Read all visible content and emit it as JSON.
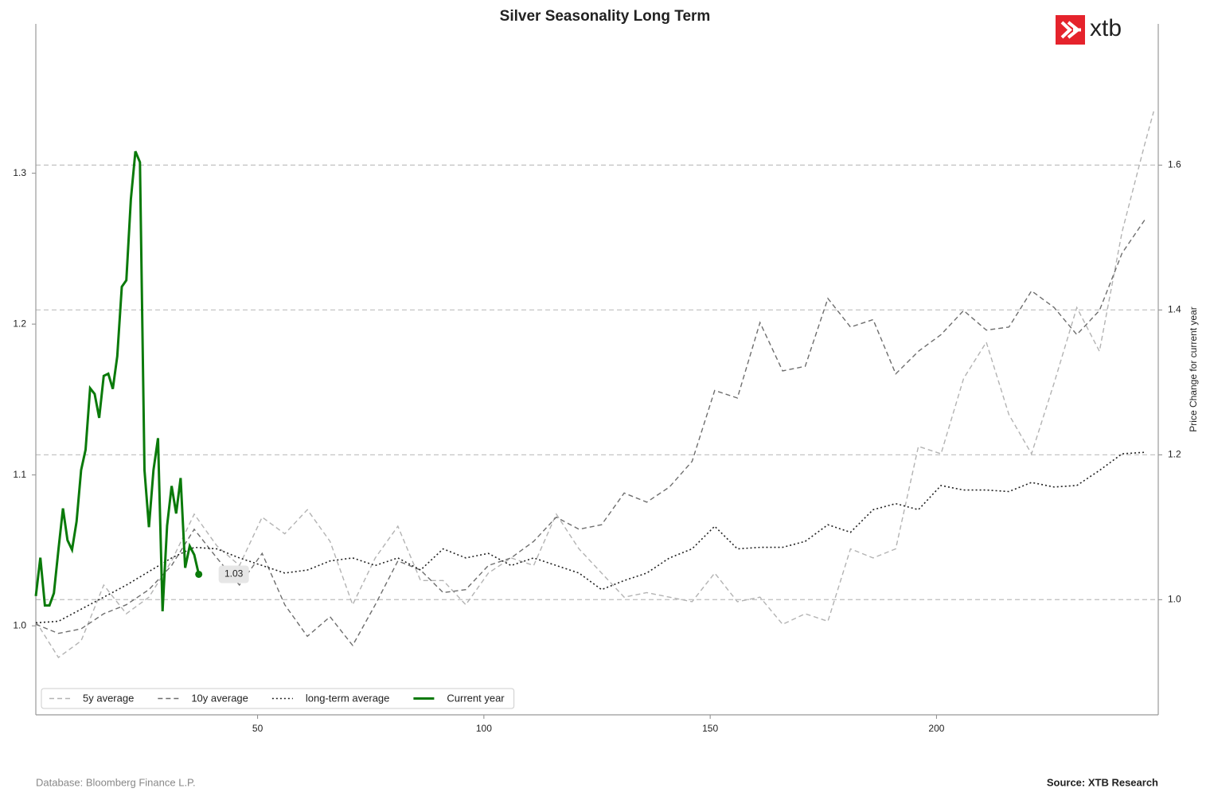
{
  "chart_data": {
    "type": "line",
    "title": "Silver Seasonality Long Term",
    "y2label": "Price Change for current year",
    "logo": "xtb",
    "footer_left": "Database: Bloomberg Finance L.P.",
    "footer_right": "Source: XTB Research",
    "xlim": [
      1,
      249
    ],
    "xticks": [
      50,
      100,
      150,
      200
    ],
    "ylim": [
      0.941,
      1.399
    ],
    "yticks": [
      {
        "value": 1.0,
        "label": "1.0"
      },
      1.1,
      1.2,
      1.3
    ],
    "y2lim": [
      0.841,
      1.795
    ],
    "y2ticks": [
      {
        "value": 1.0,
        "label": "1.0"
      },
      1.2,
      1.4,
      1.6
    ],
    "grid": true,
    "legend": "lower left",
    "series": [
      {
        "name": "5y average",
        "color": "#b3b3b3",
        "style": "dashed",
        "x": [
          1,
          6,
          11,
          16,
          21,
          26,
          31,
          36,
          41,
          46,
          51,
          56,
          61,
          66,
          71,
          76,
          81,
          86,
          91,
          96,
          101,
          106,
          111,
          116,
          121,
          126,
          131,
          136,
          141,
          146,
          151,
          156,
          161,
          166,
          171,
          176,
          181,
          186,
          191,
          196,
          201,
          206,
          211,
          216,
          221,
          226,
          231,
          236,
          241,
          246,
          248
        ],
        "values": [
          1.003,
          0.979,
          0.99,
          1.027,
          1.008,
          1.019,
          1.043,
          1.074,
          1.053,
          1.04,
          1.072,
          1.061,
          1.077,
          1.056,
          1.014,
          1.045,
          1.066,
          1.03,
          1.03,
          1.014,
          1.035,
          1.045,
          1.04,
          1.074,
          1.051,
          1.035,
          1.019,
          1.022,
          1.019,
          1.016,
          1.035,
          1.016,
          1.019,
          1.001,
          1.008,
          1.003,
          1.051,
          1.045,
          1.051,
          1.119,
          1.114,
          1.164,
          1.188,
          1.14,
          1.114,
          1.161,
          1.211,
          1.182,
          1.261,
          1.319,
          1.341
        ]
      },
      {
        "name": "10y average",
        "color": "#6e6e6e",
        "style": "dashed",
        "x": [
          1,
          6,
          11,
          16,
          21,
          26,
          31,
          36,
          41,
          46,
          51,
          56,
          61,
          66,
          71,
          76,
          81,
          86,
          91,
          96,
          101,
          106,
          111,
          116,
          121,
          126,
          131,
          136,
          141,
          146,
          151,
          156,
          161,
          166,
          171,
          176,
          181,
          186,
          191,
          196,
          201,
          206,
          211,
          216,
          221,
          226,
          231,
          236,
          241,
          246
        ],
        "values": [
          1.001,
          0.995,
          0.998,
          1.008,
          1.014,
          1.024,
          1.04,
          1.064,
          1.045,
          1.027,
          1.048,
          1.014,
          0.993,
          1.006,
          0.987,
          1.014,
          1.043,
          1.037,
          1.022,
          1.024,
          1.04,
          1.045,
          1.056,
          1.072,
          1.064,
          1.067,
          1.088,
          1.082,
          1.092,
          1.109,
          1.156,
          1.151,
          1.201,
          1.169,
          1.172,
          1.217,
          1.198,
          1.203,
          1.167,
          1.182,
          1.193,
          1.209,
          1.196,
          1.198,
          1.222,
          1.211,
          1.193,
          1.209,
          1.247,
          1.269
        ]
      },
      {
        "name": "long-term average",
        "color": "#222222",
        "style": "dotted",
        "x": [
          1,
          6,
          11,
          16,
          21,
          26,
          31,
          36,
          41,
          46,
          51,
          56,
          61,
          66,
          71,
          76,
          81,
          86,
          91,
          96,
          101,
          106,
          111,
          116,
          121,
          126,
          131,
          136,
          141,
          146,
          151,
          156,
          161,
          166,
          171,
          176,
          181,
          186,
          191,
          196,
          201,
          206,
          211,
          216,
          221,
          226,
          231,
          236,
          241,
          246
        ],
        "values": [
          1.002,
          1.003,
          1.011,
          1.019,
          1.027,
          1.036,
          1.045,
          1.052,
          1.051,
          1.045,
          1.04,
          1.035,
          1.037,
          1.043,
          1.045,
          1.04,
          1.045,
          1.037,
          1.051,
          1.045,
          1.048,
          1.04,
          1.045,
          1.04,
          1.035,
          1.024,
          1.03,
          1.035,
          1.045,
          1.051,
          1.066,
          1.051,
          1.052,
          1.052,
          1.056,
          1.067,
          1.062,
          1.077,
          1.081,
          1.077,
          1.093,
          1.09,
          1.09,
          1.089,
          1.095,
          1.092,
          1.093,
          1.103,
          1.114,
          1.115
        ]
      },
      {
        "name": "Current year",
        "color": "#0a7a0a",
        "style": "solid",
        "axis": "y2",
        "x": [
          1,
          2,
          3,
          4,
          5,
          6,
          7,
          8,
          9,
          10,
          11,
          12,
          13,
          14,
          15,
          16,
          17,
          18,
          19,
          20,
          21,
          22,
          23,
          24,
          25,
          26,
          27,
          28,
          29,
          30,
          31,
          32,
          33,
          34,
          35,
          36,
          37
        ],
        "values": [
          1.005,
          1.058,
          0.992,
          0.992,
          1.009,
          1.069,
          1.126,
          1.082,
          1.069,
          1.108,
          1.179,
          1.207,
          1.292,
          1.284,
          1.251,
          1.309,
          1.312,
          1.291,
          1.336,
          1.432,
          1.441,
          1.553,
          1.619,
          1.604,
          1.179,
          1.1,
          1.179,
          1.223,
          0.984,
          1.102,
          1.157,
          1.119,
          1.168,
          1.044,
          1.074,
          1.062,
          1.035
        ],
        "value_labels": [
          null,
          null,
          null,
          null,
          null,
          null,
          null,
          null,
          null,
          null,
          null,
          null,
          null,
          null,
          null,
          null,
          null,
          null,
          null,
          null,
          null,
          null,
          null,
          null,
          null,
          null,
          null,
          null,
          null,
          null,
          null,
          null,
          null,
          null,
          null,
          null,
          "1.03"
        ]
      }
    ]
  }
}
